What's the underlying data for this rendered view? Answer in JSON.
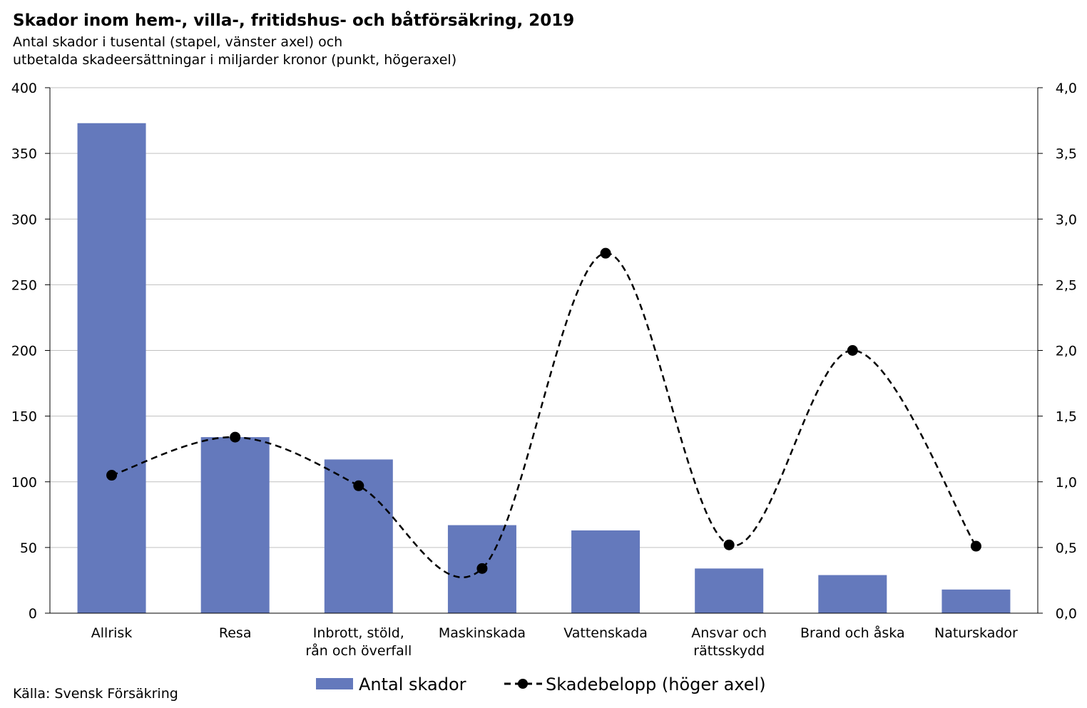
{
  "title": "Skador inom hem-, villa-, fritidshus- och båtförsäkring, 2019",
  "subtitle_line1": "Antal skador i tusental (stapel, vänster axel) och",
  "subtitle_line2": "utbetalda skadeersättningar i miljarder kronor (punkt, högeraxel)",
  "source": "Källa: Svensk Försäkring",
  "colors": {
    "bar": "#6479BC",
    "line": "#000000",
    "grid": "#C0C0C0"
  },
  "chart_data": {
    "type": "bar",
    "categories": [
      [
        "Allrisk"
      ],
      [
        "Resa"
      ],
      [
        "Inbrott, stöld,",
        "rån och överfall"
      ],
      [
        "Maskinskada"
      ],
      [
        "Vattenskada"
      ],
      [
        "Ansvar och",
        "rättsskydd"
      ],
      [
        "Brand och åska"
      ],
      [
        "Naturskador"
      ]
    ],
    "series": [
      {
        "name": "Antal skador",
        "type": "bar",
        "axis": "left",
        "values": [
          373,
          134,
          117,
          67,
          63,
          34,
          29,
          18
        ]
      },
      {
        "name": "Skadebelopp (höger axel)",
        "type": "line",
        "axis": "right",
        "line_style": "dashed-smooth",
        "marker": "circle",
        "values": [
          1.05,
          1.34,
          0.97,
          0.34,
          2.74,
          0.52,
          2.0,
          0.51
        ]
      }
    ],
    "left_axis": {
      "ylim": [
        0,
        400
      ],
      "ticks": [
        "0",
        "50",
        "100",
        "150",
        "200",
        "250",
        "300",
        "350",
        "400"
      ]
    },
    "right_axis": {
      "ylim": [
        0,
        4
      ],
      "ticks": [
        "0,0",
        "0,5",
        "1,0",
        "1,5",
        "2,0",
        "2,5",
        "3,0",
        "3,5",
        "4,0"
      ]
    },
    "grid": true,
    "legend_position": "bottom"
  }
}
